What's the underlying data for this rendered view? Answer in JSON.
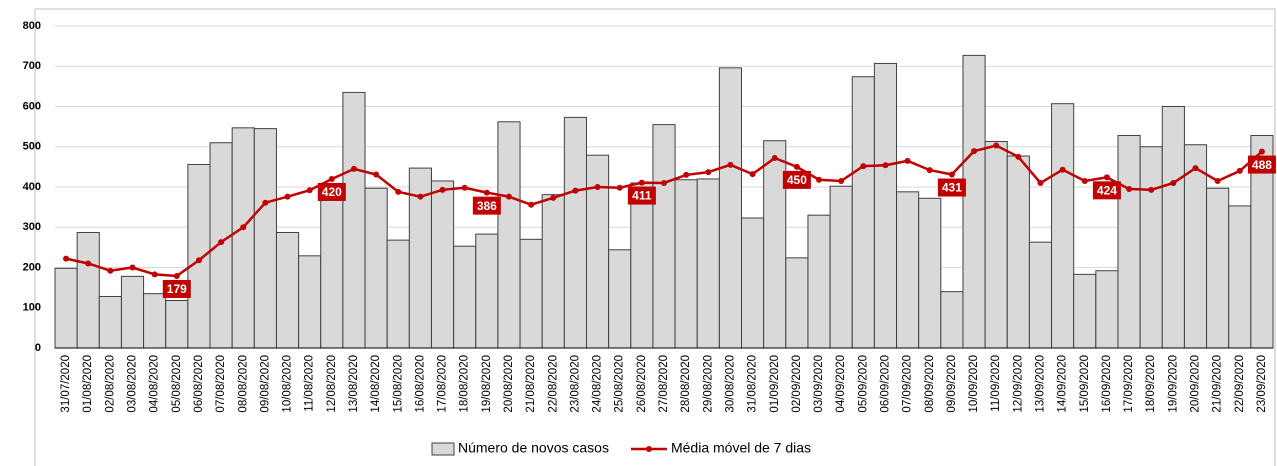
{
  "chart_data": {
    "type": "bar-line",
    "categories": [
      "31/07/2020",
      "01/08/2020",
      "02/08/2020",
      "03/08/2020",
      "04/08/2020",
      "05/08/2020",
      "06/08/2020",
      "07/08/2020",
      "08/08/2020",
      "09/08/2020",
      "10/08/2020",
      "11/08/2020",
      "12/08/2020",
      "13/08/2020",
      "14/08/2020",
      "15/08/2020",
      "16/08/2020",
      "17/08/2020",
      "18/08/2020",
      "19/08/2020",
      "20/08/2020",
      "21/08/2020",
      "22/08/2020",
      "23/08/2020",
      "24/08/2020",
      "25/08/2020",
      "26/08/2020",
      "27/08/2020",
      "28/08/2020",
      "29/08/2020",
      "30/08/2020",
      "31/08/2020",
      "01/09/2020",
      "02/09/2020",
      "03/09/2020",
      "04/09/2020",
      "05/09/2020",
      "06/09/2020",
      "07/09/2020",
      "08/09/2020",
      "09/09/2020",
      "10/09/2020",
      "11/09/2020",
      "12/09/2020",
      "13/09/2020",
      "14/09/2020",
      "15/09/2020",
      "16/09/2020",
      "17/09/2020",
      "18/09/2020",
      "19/09/2020",
      "20/09/2020",
      "21/09/2020",
      "22/09/2020",
      "23/09/2020"
    ],
    "series": [
      {
        "name": "Número de novos casos",
        "kind": "bar",
        "color": "#d9d9d9",
        "values": [
          198,
          287,
          128,
          178,
          135,
          118,
          456,
          510,
          547,
          545,
          287,
          229,
          405,
          635,
          397,
          268,
          447,
          415,
          253,
          283,
          562,
          270,
          381,
          573,
          479,
          244,
          410,
          555,
          418,
          420,
          696,
          323,
          515,
          224,
          330,
          402,
          674,
          707,
          388,
          372,
          140,
          727,
          513,
          477,
          263,
          607,
          183,
          192,
          528,
          500,
          600,
          505,
          397,
          353,
          528
        ]
      },
      {
        "name": "Média móvel de 7 dias",
        "kind": "line",
        "color": "#c00000",
        "values": [
          222,
          210,
          192,
          200,
          183,
          179,
          218,
          263,
          300,
          361,
          376,
          392,
          420,
          445,
          431,
          388,
          376,
          393,
          398,
          386,
          376,
          356,
          373,
          391,
          400,
          398,
          411,
          410,
          430,
          437,
          455,
          432,
          472,
          450,
          418,
          415,
          452,
          454,
          465,
          442,
          431,
          489,
          503,
          475,
          410,
          443,
          415,
          424,
          395,
          393,
          410,
          447,
          415,
          440,
          488
        ],
        "labeled_points": [
          5,
          12,
          19,
          26,
          33,
          40,
          47,
          54
        ]
      }
    ],
    "ylim": [
      0,
      800
    ],
    "yticks": [
      0,
      100,
      200,
      300,
      400,
      500,
      600,
      700,
      800
    ],
    "grid": true,
    "legend": "bottom"
  }
}
